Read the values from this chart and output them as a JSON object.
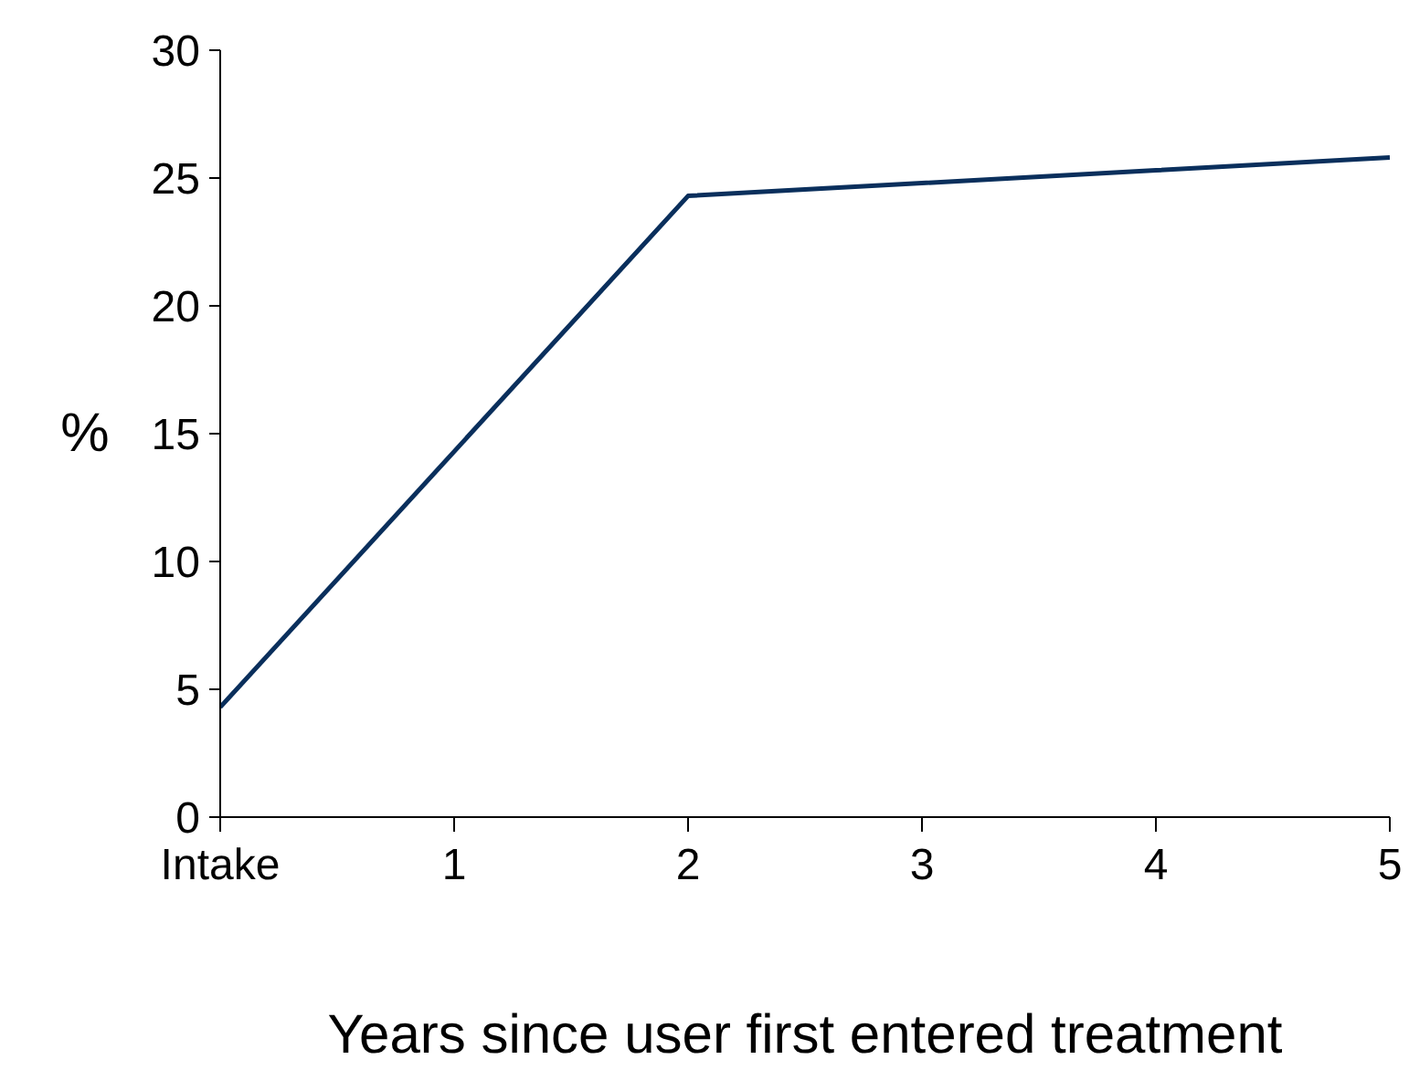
{
  "chart_data": {
    "type": "line",
    "xlabel": "Years since user first entered treatment",
    "ylabel": "%",
    "x": [
      0,
      1,
      2,
      3,
      4,
      5
    ],
    "series": [
      {
        "color": "#0a2f5c",
        "values": [
          4.3,
          14.3,
          24.3,
          24.8,
          25.3,
          25.8
        ]
      }
    ],
    "xlim": [
      0,
      5
    ],
    "ylim": [
      0,
      30
    ],
    "xticks": [
      {
        "value": 0,
        "label": "Intake"
      },
      1,
      2,
      3,
      4,
      5
    ],
    "yticks": [
      0,
      5,
      10,
      15,
      20,
      25,
      30
    ],
    "line_style": "solid"
  }
}
